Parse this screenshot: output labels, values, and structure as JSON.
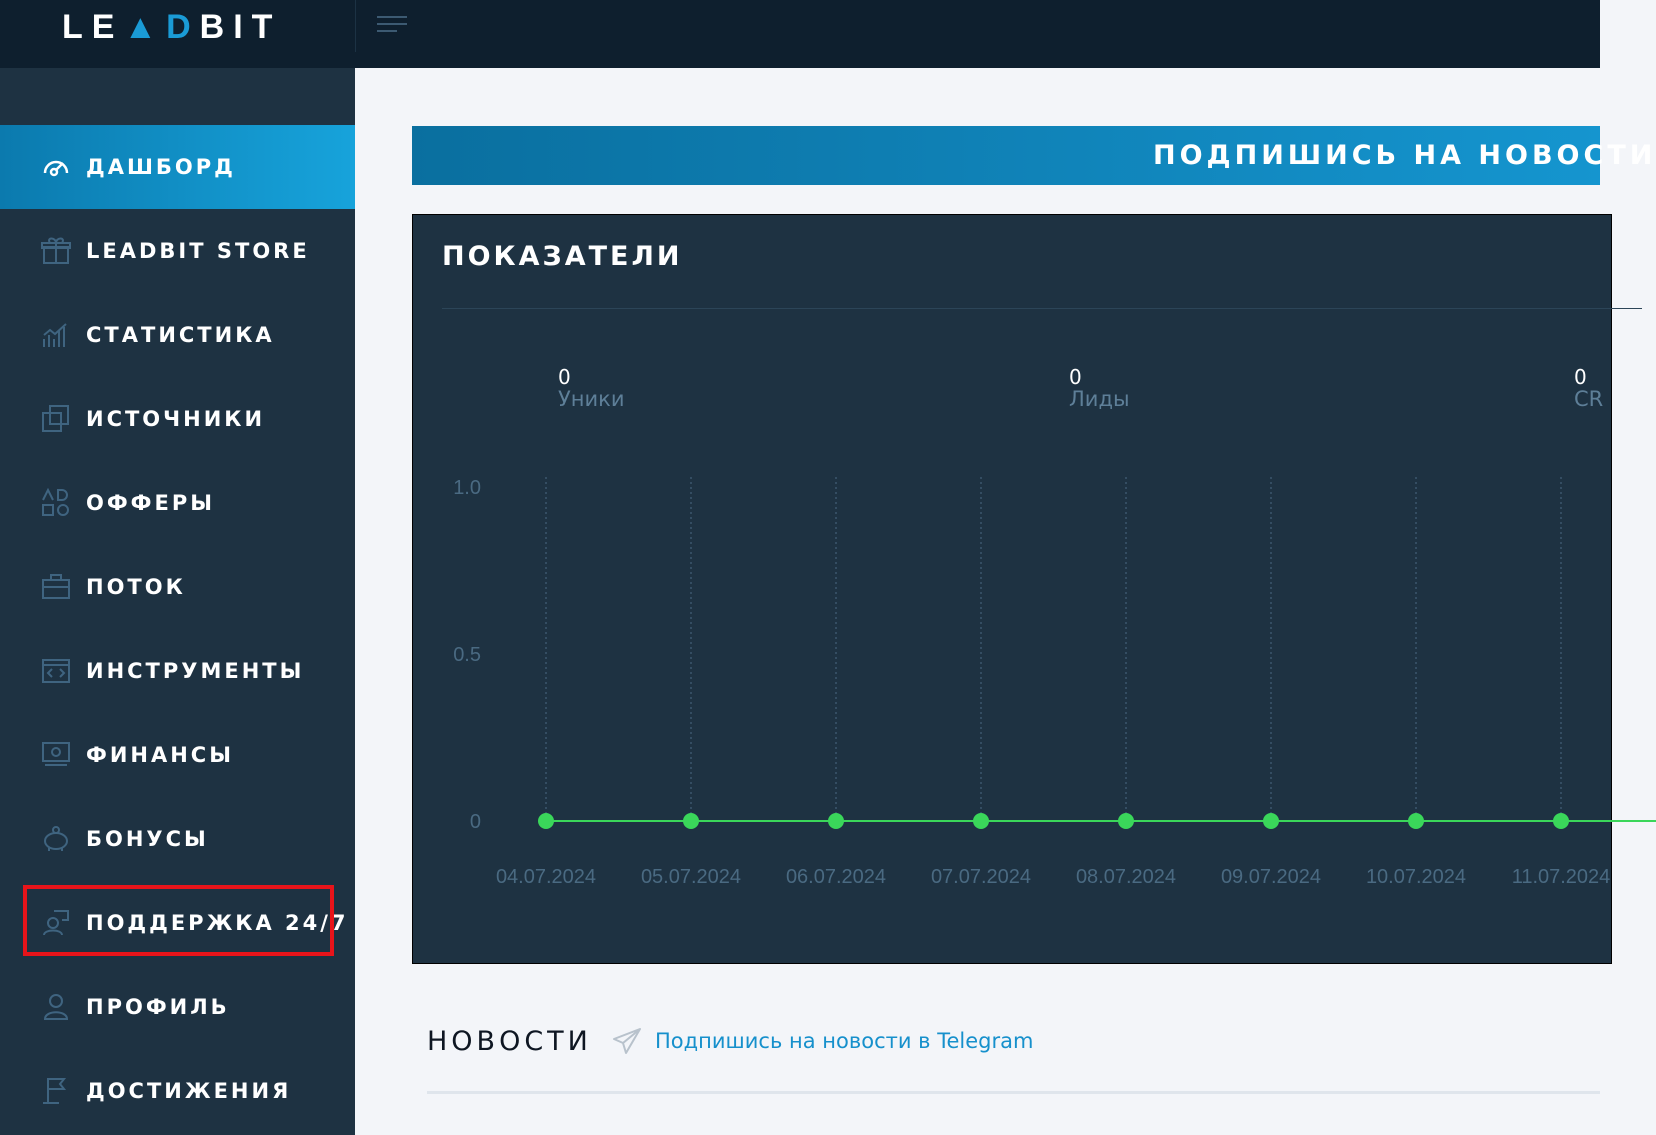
{
  "header": {
    "logo": {
      "pre": "LE",
      "a": "A",
      "d": "D",
      "post": "BIT"
    }
  },
  "sidebar": {
    "items": [
      {
        "label": "ДАШБОРД",
        "icon": "dashboard-icon",
        "active": true
      },
      {
        "label": "LEADBIT STORE",
        "icon": "gift-icon"
      },
      {
        "label": "СТАТИСТИКА",
        "icon": "chart-icon"
      },
      {
        "label": "ИСТОЧНИКИ",
        "icon": "sources-icon"
      },
      {
        "label": "ОФФЕРЫ",
        "icon": "offers-icon"
      },
      {
        "label": "ПОТОК",
        "icon": "briefcase-icon"
      },
      {
        "label": "ИНСТРУМЕНТЫ",
        "icon": "code-icon"
      },
      {
        "label": "ФИНАНСЫ",
        "icon": "money-icon"
      },
      {
        "label": "БОНУСЫ",
        "icon": "piggy-bank-icon"
      },
      {
        "label": "ПОДДЕРЖКА 24/7",
        "icon": "support-icon",
        "highlighted": true
      },
      {
        "label": "ПРОФИЛЬ",
        "icon": "user-icon"
      },
      {
        "label": "ДОСТИЖЕНИЯ",
        "icon": "flag-icon"
      }
    ]
  },
  "banner": {
    "text": "ПОДПИШИСЬ НА НОВОСТИ"
  },
  "panel": {
    "title": "ПОКАЗАТЕЛИ",
    "stats": [
      {
        "value": "0",
        "label": "Уники"
      },
      {
        "value": "0",
        "label": "Лиды"
      },
      {
        "value": "0",
        "label": "CR"
      }
    ]
  },
  "chart_data": {
    "type": "line",
    "x": [
      "04.07.2024",
      "05.07.2024",
      "06.07.2024",
      "07.07.2024",
      "08.07.2024",
      "09.07.2024",
      "10.07.2024",
      "11.07.2024"
    ],
    "values": [
      0,
      0,
      0,
      0,
      0,
      0,
      0,
      0
    ],
    "yticks": [
      "0",
      "0.5",
      "1.0"
    ],
    "ylim": [
      0,
      1
    ],
    "grid": "vertical dotted",
    "color": "#3ad65a"
  },
  "news": {
    "title": "НОВОСТИ",
    "link": "Подпишись на новости в Telegram"
  },
  "colors": {
    "accent": "#1595cf",
    "sidebar": "#1e3242",
    "header": "#0e1f2e",
    "highlight": "#e8141a",
    "line": "#3ad65a"
  }
}
